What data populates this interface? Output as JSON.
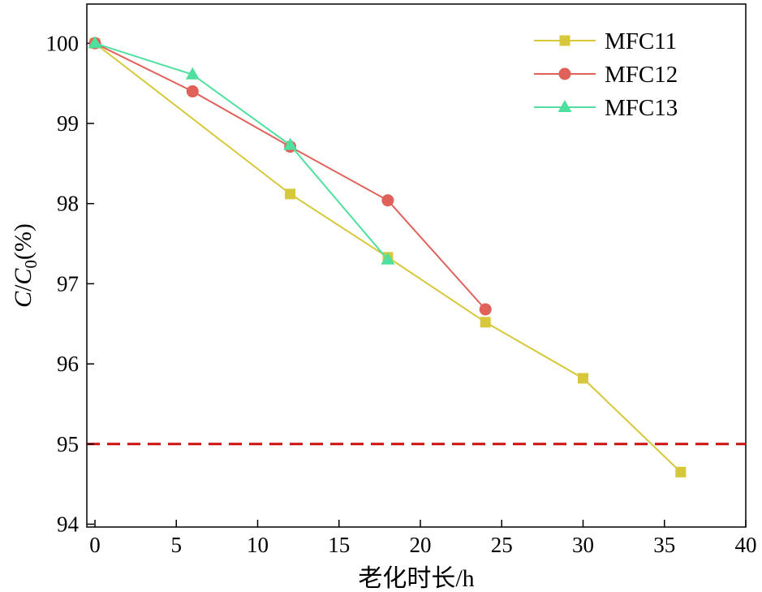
{
  "chart_data": {
    "type": "line",
    "title": "",
    "xlabel": "老化时长/h",
    "ylabel": {
      "var1": "C",
      "sep": "/",
      "var2": "C",
      "sub": "0",
      "unit": "(%)"
    },
    "xlim": [
      0,
      40
    ],
    "ylim": [
      94,
      100.5
    ],
    "xticks": [
      0,
      5,
      10,
      15,
      20,
      25,
      30,
      35,
      40
    ],
    "yticks": [
      94,
      95,
      96,
      97,
      98,
      99,
      100
    ],
    "grid": false,
    "legend": "top-right",
    "reference_line": {
      "y": 95,
      "style": "dashed",
      "color": "#cc1111"
    },
    "series": [
      {
        "name": "MFC11",
        "marker": "square",
        "color": "#d6c83a",
        "x": [
          0,
          12,
          18,
          24,
          30,
          36
        ],
        "y": [
          100,
          98.12,
          97.33,
          96.52,
          95.82,
          94.65
        ]
      },
      {
        "name": "MFC12",
        "marker": "circle",
        "color": "#e0605a",
        "x": [
          0,
          6,
          12,
          18,
          24
        ],
        "y": [
          100,
          99.4,
          98.71,
          98.04,
          96.68
        ]
      },
      {
        "name": "MFC13",
        "marker": "triangle",
        "color": "#4fe0a0",
        "x": [
          0,
          6,
          12,
          18
        ],
        "y": [
          100,
          99.61,
          98.73,
          97.3
        ]
      }
    ]
  }
}
